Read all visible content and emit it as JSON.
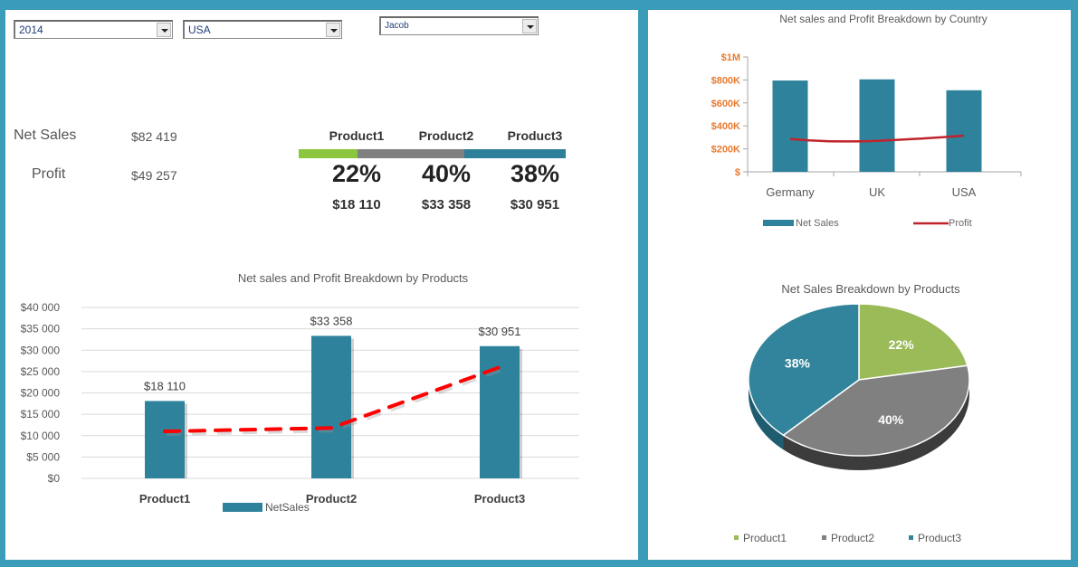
{
  "filters": {
    "year": "2014",
    "country": "USA",
    "salesperson": "Jacob"
  },
  "kpis": {
    "net_sales_label": "Net Sales",
    "net_sales_value": "$82 419",
    "profit_label": "Profit",
    "profit_value": "$49 257"
  },
  "product_shares": [
    {
      "name": "Product1",
      "percent": "22%",
      "value": "$18 110",
      "share": 22,
      "color": "#8cc63f"
    },
    {
      "name": "Product2",
      "percent": "40%",
      "value": "$33 358",
      "share": 40,
      "color": "#808080"
    },
    {
      "name": "Product3",
      "percent": "38%",
      "value": "$30 951",
      "share": 38,
      "color": "#2e7f99"
    }
  ],
  "colors": {
    "frame": "#3b9cb9",
    "bar": "#2e829b",
    "profit_dashed": "#ff0000",
    "profit_line": "#c0232b",
    "axis_orange": "#e97a2e"
  },
  "chart_data": [
    {
      "type": "bar",
      "title": "Net sales and Profit Breakdown by Products",
      "categories": [
        "Product1",
        "Product2",
        "Product3"
      ],
      "series": [
        {
          "name": "NetSales",
          "values": [
            18110,
            33358,
            30951
          ],
          "labels": [
            "$18 110",
            "$33 358",
            "$30 951"
          ]
        },
        {
          "name": "Profit",
          "type": "line",
          "style": "dashed",
          "values": [
            11000,
            11800,
            26000
          ]
        }
      ],
      "yticks": [
        "$0",
        "$5 000",
        "$10 000",
        "$15 000",
        "$20 000",
        "$25 000",
        "$30 000",
        "$35 000",
        "$40 000"
      ],
      "ylim": [
        0,
        40000
      ],
      "grid": true,
      "legend": [
        "NetSales"
      ],
      "legend_position": "bottom"
    },
    {
      "type": "bar",
      "title": "Net sales and Profit Breakdown by Country",
      "categories": [
        "Germany",
        "UK",
        "USA"
      ],
      "series": [
        {
          "name": "Net Sales",
          "values": [
            795000,
            805000,
            710000
          ]
        },
        {
          "name": "Profit",
          "type": "line",
          "values": [
            285000,
            270000,
            315000
          ]
        }
      ],
      "yticks": [
        "$",
        "$200K",
        "$400K",
        "$600K",
        "$800K",
        "$1M"
      ],
      "ylim": [
        0,
        1000000
      ],
      "grid": false,
      "legend": [
        "Net Sales",
        "Profit"
      ],
      "legend_position": "bottom"
    },
    {
      "type": "pie",
      "title": "Net Sales Breakdown by Products",
      "categories": [
        "Product1",
        "Product2",
        "Product3"
      ],
      "values": [
        22,
        40,
        38
      ],
      "labels": [
        "22%",
        "40%",
        "38%"
      ],
      "colors": [
        "#9bbb59",
        "#808080",
        "#31849b"
      ],
      "legend_position": "bottom"
    }
  ]
}
